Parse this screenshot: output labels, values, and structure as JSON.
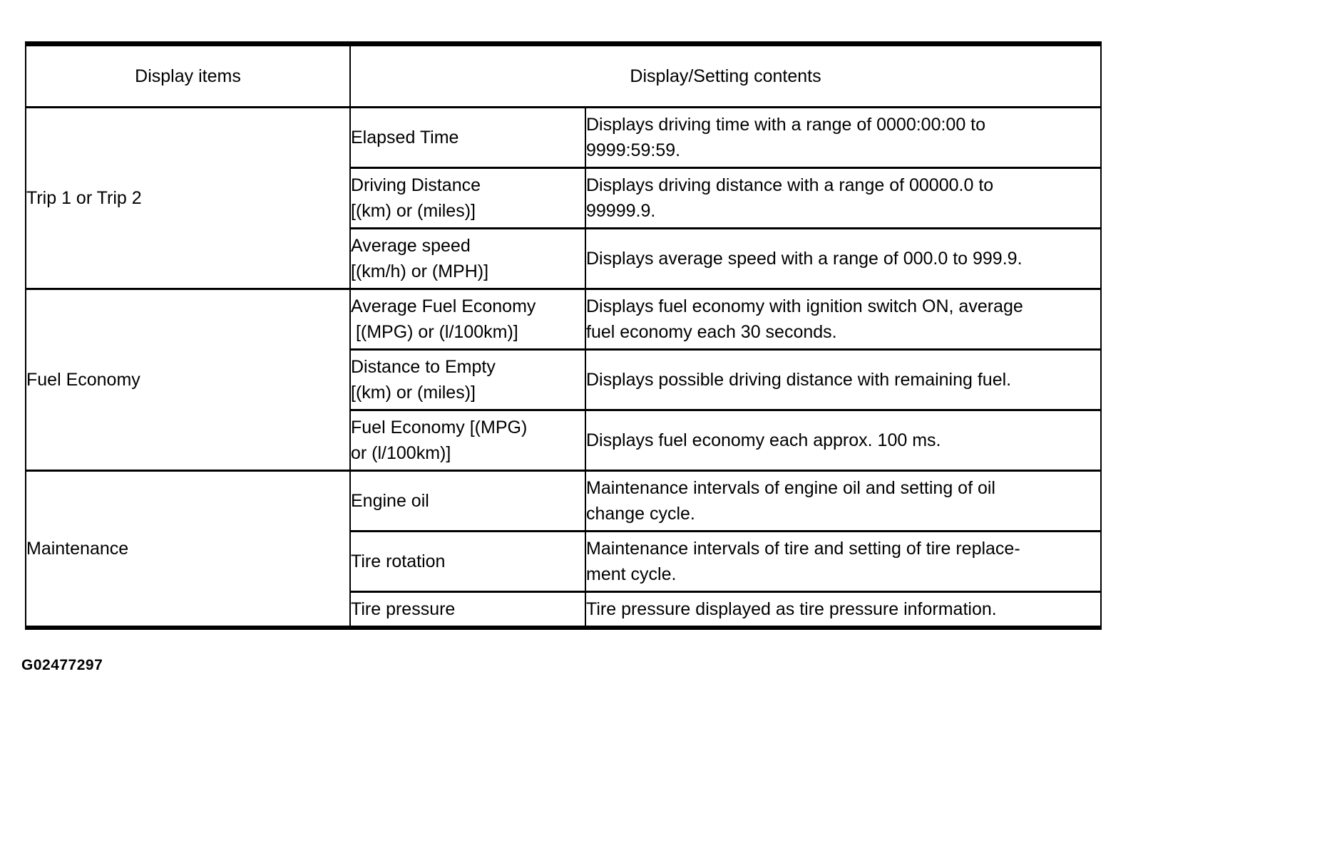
{
  "table": {
    "headers": {
      "display_items": "Display items",
      "display_setting_contents": "Display/Setting contents"
    },
    "groups": [
      {
        "label": "Trip 1 or Trip 2",
        "rows": [
          {
            "item": "Elapsed Time",
            "desc": "Displays driving time with a range of 0000:00:00 to\n9999:59:59."
          },
          {
            "item": "Driving Distance\n[(km) or (miles)]",
            "desc": "Displays driving distance with a range of 00000.0 to\n99999.9."
          },
          {
            "item": "Average speed\n[(km/h) or (MPH)]",
            "desc": "Displays average speed with a range of 000.0 to 999.9."
          }
        ]
      },
      {
        "label": "Fuel Economy",
        "rows": [
          {
            "item": "Average Fuel Economy\n [(MPG) or (l/100km)]",
            "desc": "Displays fuel economy with ignition switch ON, average\nfuel economy each 30 seconds."
          },
          {
            "item": "Distance to Empty\n[(km) or (miles)]",
            "desc": "Displays possible driving distance with remaining fuel."
          },
          {
            "item": "Fuel Economy [(MPG)\nor (l/100km)]",
            "desc": "Displays fuel economy each approx. 100 ms."
          }
        ]
      },
      {
        "label": "Maintenance",
        "rows": [
          {
            "item": "Engine oil",
            "desc": "Maintenance intervals of engine oil and setting of oil\nchange cycle."
          },
          {
            "item": "Tire rotation",
            "desc": "Maintenance intervals of tire and setting of tire replace-\nment cycle."
          },
          {
            "item": "Tire pressure",
            "desc": "Tire pressure displayed as tire pressure information."
          }
        ]
      }
    ]
  },
  "footer": {
    "figure_id": "G02477297"
  }
}
